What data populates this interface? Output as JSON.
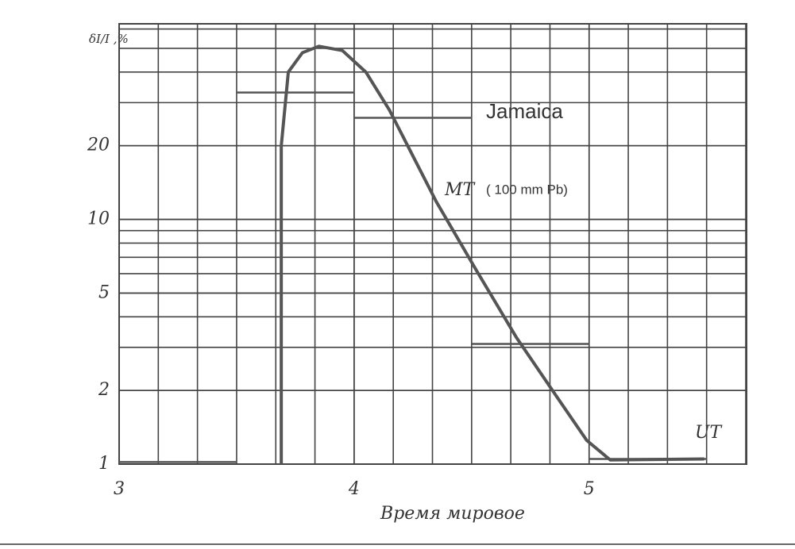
{
  "chart_data": {
    "type": "line",
    "y_label": "δI/I ,%",
    "x_label": "Время мировое",
    "annotations": {
      "location": "Jamaica",
      "curve": "MT",
      "curve_note": "( 100 mm Pb)",
      "other": "UT"
    },
    "log_y": true,
    "grid": true,
    "xlim": [
      3,
      5.67
    ],
    "xticks": [
      3,
      4,
      5
    ],
    "ylim": [
      1,
      63
    ],
    "yticks": [
      1,
      2,
      5,
      10,
      20
    ],
    "series": [
      {
        "color": "#555555",
        "x": [
          3.69,
          3.69,
          3.72,
          3.78,
          3.85,
          3.95,
          4.05,
          4.15,
          4.35,
          4.52,
          4.69,
          4.86,
          4.99,
          5.09,
          5.49
        ],
        "values": [
          1,
          20,
          40,
          48,
          51,
          49,
          40,
          28,
          11.8,
          6.2,
          3.3,
          1.9,
          1.25,
          1.04,
          1.05
        ]
      },
      {
        "color": "#555555",
        "bins": [
          3,
          3.5,
          4,
          4.5,
          5,
          5.5
        ],
        "values": [
          1.02,
          33,
          26,
          3.1,
          1.05
        ]
      }
    ]
  }
}
